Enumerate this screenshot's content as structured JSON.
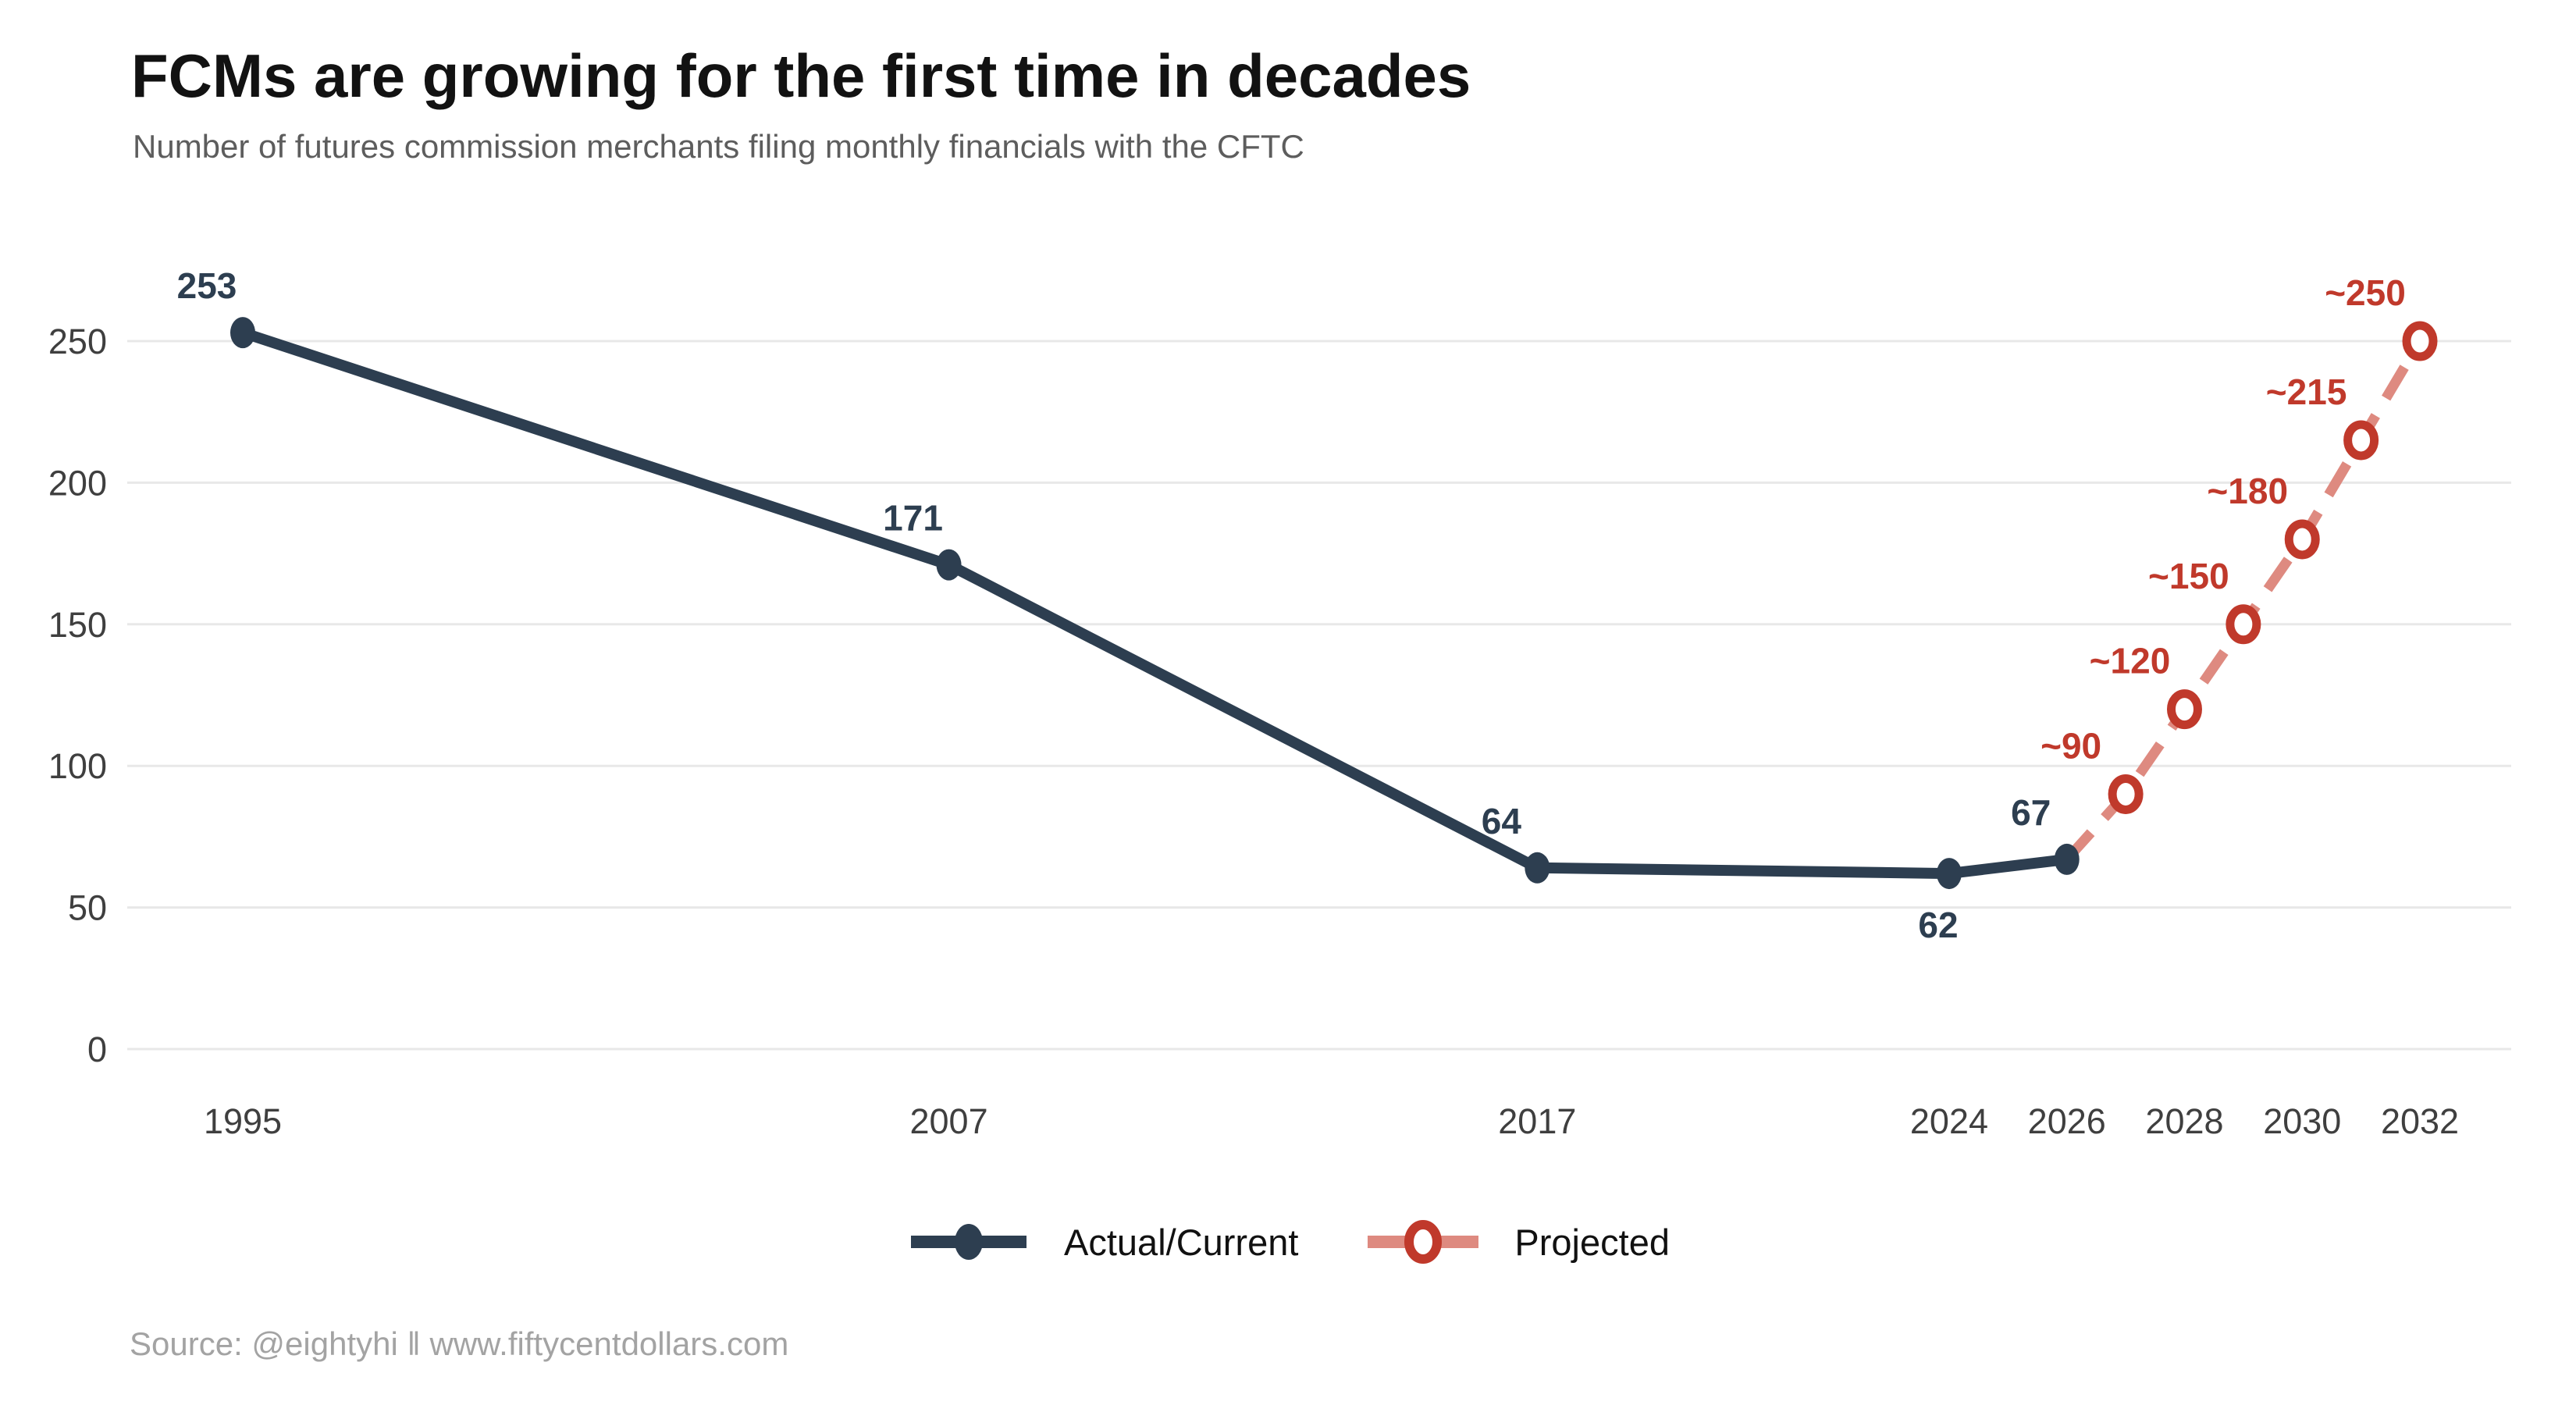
{
  "chart_data": {
    "type": "line",
    "title": "FCMs are growing for the first time in decades",
    "subtitle": "Number of futures commission merchants filing monthly financials with the CFTC",
    "source": "Source: @eightyhi ‖ www.fiftycentdollars.com",
    "x_axis": {
      "ticks": [
        1995,
        2007,
        2017,
        2024,
        2026,
        2028,
        2030,
        2032
      ],
      "range": [
        1995,
        2032
      ]
    },
    "y_axis": {
      "ticks": [
        0,
        50,
        100,
        150,
        200,
        250
      ],
      "range": [
        0,
        250
      ],
      "grid": true
    },
    "legend_position": "bottom-center",
    "series": [
      {
        "name": "Actual/Current",
        "line_style": "solid",
        "marker": "filled-dot",
        "color": "#2d3e50",
        "points": [
          {
            "year": 1995,
            "value": 253,
            "label": "253",
            "label_side": "above"
          },
          {
            "year": 2007,
            "value": 171,
            "label": "171",
            "label_side": "above"
          },
          {
            "year": 2017,
            "value": 64,
            "label": "64",
            "label_side": "above"
          },
          {
            "year": 2024,
            "value": 62,
            "label": "62",
            "label_side": "below"
          },
          {
            "year": 2026,
            "value": 67,
            "label": "67",
            "label_side": "above"
          }
        ]
      },
      {
        "name": "Projected",
        "line_style": "dashed",
        "marker": "open-circle",
        "color": "#c0392b",
        "line_color": "#de8a80",
        "connects_from_previous_series": true,
        "points": [
          {
            "year": 2027,
            "value": 90,
            "label": "~90",
            "label_side": "above"
          },
          {
            "year": 2028,
            "value": 120,
            "label": "~120",
            "label_side": "above"
          },
          {
            "year": 2029,
            "value": 150,
            "label": "~150",
            "label_side": "above"
          },
          {
            "year": 2030,
            "value": 180,
            "label": "~180",
            "label_side": "above"
          },
          {
            "year": 2031,
            "value": 215,
            "label": "~215",
            "label_side": "above"
          },
          {
            "year": 2032,
            "value": 250,
            "label": "~250",
            "label_side": "above"
          }
        ]
      }
    ],
    "colors": {
      "actual": "#2d3e50",
      "projected": "#c0392b",
      "projected_line": "#de8a80",
      "grid": "#e8e8e8",
      "tick": "#3f3f3f",
      "title": "#121212",
      "subtitle": "#5d5d5d",
      "source": "#a3a3a3"
    }
  }
}
